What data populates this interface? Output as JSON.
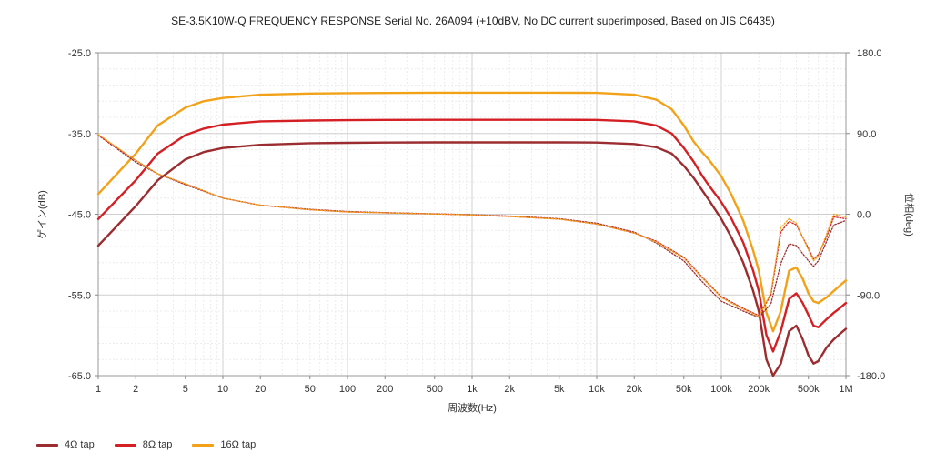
{
  "chart_data": {
    "type": "line",
    "title": "SE-3.5K10W-Q FREQUENCY RESPONSE Serial No. 26A094 (+10dBV,  No DC current superimposed,  Based on JIS C6435)",
    "xlabel": "周波数(Hz)",
    "ylabel": "ゲイン(dB)",
    "y2label": "位相(deg)",
    "x_scale": "log",
    "xlim": [
      1,
      1000000
    ],
    "ylim": [
      -65,
      -25
    ],
    "y2lim": [
      -180,
      180
    ],
    "grid": true,
    "legend_position": "bottom-left",
    "x_ticks": [
      {
        "v": 1,
        "label": "1"
      },
      {
        "v": 2,
        "label": "2"
      },
      {
        "v": 5,
        "label": "5"
      },
      {
        "v": 10,
        "label": "10"
      },
      {
        "v": 20,
        "label": "20"
      },
      {
        "v": 50,
        "label": "50"
      },
      {
        "v": 100,
        "label": "100"
      },
      {
        "v": 200,
        "label": "200"
      },
      {
        "v": 500,
        "label": "500"
      },
      {
        "v": 1000,
        "label": "1k"
      },
      {
        "v": 2000,
        "label": "2k"
      },
      {
        "v": 5000,
        "label": "5k"
      },
      {
        "v": 10000,
        "label": "10k"
      },
      {
        "v": 20000,
        "label": "20k"
      },
      {
        "v": 50000,
        "label": "50k"
      },
      {
        "v": 100000,
        "label": "100k"
      },
      {
        "v": 200000,
        "label": "200k"
      },
      {
        "v": 500000,
        "label": "500k"
      },
      {
        "v": 1000000,
        "label": "1M"
      }
    ],
    "y_ticks": [
      {
        "v": -25,
        "label": "-25.0"
      },
      {
        "v": -35,
        "label": "-35.0"
      },
      {
        "v": -45,
        "label": "-45.0"
      },
      {
        "v": -55,
        "label": "-55.0"
      },
      {
        "v": -65,
        "label": "-65.0"
      }
    ],
    "y2_ticks": [
      {
        "v": 180,
        "label": "180.0"
      },
      {
        "v": 90,
        "label": "90.0"
      },
      {
        "v": 0,
        "label": "0.0"
      },
      {
        "v": -90,
        "label": "-90.0"
      },
      {
        "v": -180,
        "label": "-180.0"
      }
    ],
    "series": [
      {
        "name": "4Ω tap",
        "color": "#9b2d30",
        "x": [
          1,
          2,
          3,
          5,
          7,
          10,
          20,
          50,
          100,
          200,
          500,
          1000,
          2000,
          5000,
          10000,
          20000,
          30000,
          40000,
          50000,
          60000,
          70000,
          80000,
          100000,
          120000,
          150000,
          180000,
          200000,
          230000,
          260000,
          300000,
          350000,
          400000,
          450000,
          500000,
          550000,
          600000,
          700000,
          800000,
          900000,
          1000000
        ],
        "gain": [
          -48.9,
          -44.0,
          -40.8,
          -38.2,
          -37.3,
          -36.8,
          -36.4,
          -36.2,
          -36.15,
          -36.12,
          -36.1,
          -36.1,
          -36.1,
          -36.1,
          -36.12,
          -36.3,
          -36.7,
          -37.5,
          -39.0,
          -40.5,
          -42.0,
          -43.3,
          -45.6,
          -47.8,
          -51.0,
          -54.5,
          -57.0,
          -63.0,
          -65.5,
          -63.5,
          -59.5,
          -58.8,
          -60.5,
          -62.5,
          -63.5,
          -63.2,
          -61.5,
          -60.5,
          -59.8,
          -59.2
        ]
      },
      {
        "name": "8Ω tap",
        "color": "#d42024",
        "x": [
          1,
          2,
          3,
          5,
          7,
          10,
          20,
          50,
          100,
          200,
          500,
          1000,
          2000,
          5000,
          10000,
          20000,
          30000,
          40000,
          50000,
          60000,
          70000,
          80000,
          100000,
          120000,
          150000,
          180000,
          200000,
          230000,
          260000,
          300000,
          350000,
          400000,
          450000,
          500000,
          550000,
          600000,
          700000,
          800000,
          900000,
          1000000
        ],
        "gain": [
          -45.6,
          -40.8,
          -37.5,
          -35.2,
          -34.4,
          -33.9,
          -33.5,
          -33.4,
          -33.35,
          -33.32,
          -33.3,
          -33.3,
          -33.3,
          -33.3,
          -33.32,
          -33.5,
          -34.0,
          -35.0,
          -36.8,
          -38.5,
          -40.2,
          -41.5,
          -43.5,
          -45.5,
          -48.5,
          -52.0,
          -54.5,
          -60.0,
          -62.0,
          -59.5,
          -55.5,
          -54.8,
          -56.0,
          -57.5,
          -58.8,
          -59.0,
          -58.0,
          -57.2,
          -56.6,
          -56.0
        ]
      },
      {
        "name": "16Ω tap",
        "color": "#f2a218",
        "x": [
          1,
          2,
          3,
          5,
          7,
          10,
          20,
          50,
          100,
          200,
          500,
          1000,
          2000,
          5000,
          10000,
          20000,
          30000,
          40000,
          50000,
          60000,
          70000,
          80000,
          100000,
          120000,
          150000,
          180000,
          200000,
          230000,
          260000,
          300000,
          350000,
          400000,
          450000,
          500000,
          550000,
          600000,
          700000,
          800000,
          900000,
          1000000
        ],
        "gain": [
          -42.5,
          -37.5,
          -34.0,
          -31.8,
          -31.0,
          -30.6,
          -30.2,
          -30.05,
          -30.0,
          -29.98,
          -29.95,
          -29.95,
          -29.95,
          -29.95,
          -29.97,
          -30.2,
          -30.8,
          -32.0,
          -34.0,
          -36.0,
          -37.3,
          -38.3,
          -40.3,
          -42.5,
          -45.8,
          -49.5,
          -52.0,
          -57.2,
          -59.5,
          -57.0,
          -52.0,
          -51.6,
          -53.0,
          -54.8,
          -55.8,
          -56.0,
          -55.3,
          -54.5,
          -53.8,
          -53.2
        ]
      },
      {
        "name": "4Ω tap",
        "axis": "y2",
        "style": "dotted",
        "color": "#9b2d30",
        "x": [
          1,
          2,
          3,
          5,
          10,
          20,
          50,
          100,
          200,
          500,
          1000,
          2000,
          5000,
          10000,
          20000,
          30000,
          50000,
          70000,
          100000,
          150000,
          200000,
          250000,
          300000,
          350000,
          400000,
          500000,
          550000,
          600000,
          700000,
          800000,
          1000000
        ],
        "phase": [
          88,
          58,
          45,
          33,
          18,
          10,
          5.5,
          3,
          1.8,
          0.5,
          -0.5,
          -2,
          -5,
          -10,
          -20,
          -32,
          -52,
          -75,
          -97,
          -108,
          -115,
          -100,
          -55,
          -33,
          -35,
          -52,
          -58,
          -52,
          -30,
          -12,
          -7
        ]
      },
      {
        "name": "8Ω tap",
        "axis": "y2",
        "style": "dotted",
        "color": "#d42024",
        "x": [
          1,
          2,
          3,
          5,
          10,
          20,
          50,
          100,
          200,
          500,
          1000,
          2000,
          5000,
          10000,
          20000,
          30000,
          50000,
          70000,
          100000,
          150000,
          200000,
          250000,
          300000,
          350000,
          400000,
          500000,
          550000,
          600000,
          700000,
          800000,
          1000000
        ],
        "phase": [
          88,
          60,
          45,
          34,
          18,
          10,
          5,
          2.5,
          1.5,
          0.3,
          -0.8,
          -2.5,
          -5.5,
          -11,
          -21,
          -30,
          -48,
          -70,
          -92,
          -105,
          -113,
          -90,
          -20,
          -8,
          -12,
          -38,
          -50,
          -45,
          -25,
          -3,
          -5
        ]
      },
      {
        "name": "16Ω tap",
        "axis": "y2",
        "style": "dotted",
        "color": "#f2a218",
        "x": [
          1,
          2,
          3,
          5,
          10,
          20,
          50,
          100,
          200,
          500,
          1000,
          2000,
          5000,
          10000,
          20000,
          30000,
          50000,
          70000,
          100000,
          150000,
          200000,
          250000,
          300000,
          350000,
          400000,
          500000,
          550000,
          600000,
          700000,
          800000,
          1000000
        ],
        "phase": [
          89,
          60,
          45,
          34,
          18,
          10,
          5,
          2.5,
          1.5,
          0.3,
          -0.8,
          -2.5,
          -5.5,
          -11,
          -21,
          -31,
          -49,
          -71,
          -93,
          -106,
          -114,
          -88,
          -15,
          -5,
          -10,
          -40,
          -52,
          -47,
          -22,
          0,
          -3
        ]
      }
    ]
  },
  "legend": {
    "items": [
      {
        "label": "4Ω tap",
        "color": "#9b2d30"
      },
      {
        "label": "8Ω tap",
        "color": "#d42024"
      },
      {
        "label": "16Ω tap",
        "color": "#f2a218"
      }
    ]
  }
}
